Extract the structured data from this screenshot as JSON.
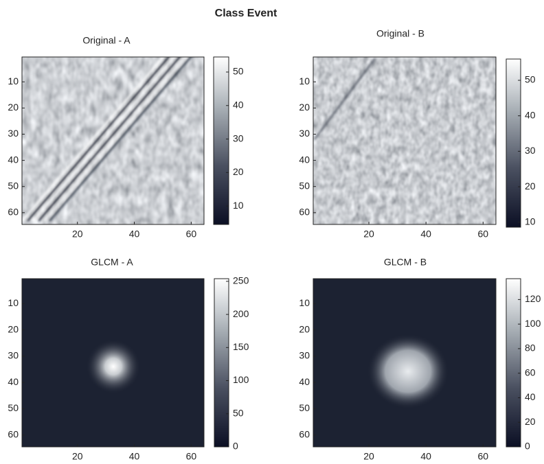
{
  "title": "Class Event",
  "chart_data": [
    {
      "type": "image",
      "title": "Original - A",
      "xlim": [
        0.5,
        64.5
      ],
      "ylim": [
        64.5,
        0.5
      ],
      "xticks": [
        20,
        40,
        60
      ],
      "yticks": [
        10,
        20,
        30,
        40,
        50,
        60
      ],
      "colorbar": {
        "lim": [
          4.5,
          54.5
        ],
        "ticks": [
          10,
          20,
          30,
          40,
          50
        ]
      }
    },
    {
      "type": "image",
      "title": "Original - B",
      "xlim": [
        0.5,
        64.5
      ],
      "ylim": [
        64.5,
        0.5
      ],
      "xticks": [
        20,
        40,
        60
      ],
      "yticks": [
        10,
        20,
        30,
        40,
        50,
        60
      ],
      "colorbar": {
        "lim": [
          8.6,
          56
        ],
        "ticks": [
          10,
          20,
          30,
          40,
          50
        ]
      }
    },
    {
      "type": "image",
      "title": "GLCM - A",
      "xlim": [
        0.5,
        64.5
      ],
      "ylim": [
        64.5,
        0.5
      ],
      "xticks": [
        20,
        40,
        60
      ],
      "yticks": [
        10,
        20,
        30,
        40,
        50,
        60
      ],
      "colorbar": {
        "lim": [
          0,
          254
        ],
        "ticks": [
          0,
          50,
          100,
          150,
          200,
          250
        ]
      }
    },
    {
      "type": "image",
      "title": "GLCM - B",
      "xlim": [
        0.5,
        64.5
      ],
      "ylim": [
        64.5,
        0.5
      ],
      "xticks": [
        20,
        40,
        60
      ],
      "yticks": [
        10,
        20,
        30,
        40,
        50,
        60
      ],
      "colorbar": {
        "lim": [
          0,
          137
        ],
        "ticks": [
          0,
          20,
          40,
          60,
          80,
          100,
          120
        ]
      }
    }
  ]
}
